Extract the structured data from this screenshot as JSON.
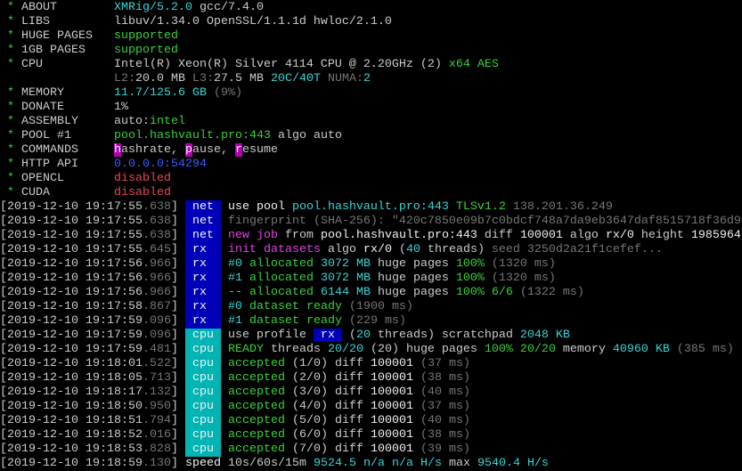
{
  "colors": {
    "white": "#cccccc",
    "bright": "#f2f2f2",
    "green": "#3ad13a",
    "cyan": "#3ad5d5",
    "grey": "#767676",
    "magenta": "#e040e0",
    "blue": "#3b5bff",
    "red": "#e74856",
    "tag_blue_bg": "#0000b8",
    "tag_cyan_bg": "#00b4b4"
  },
  "header": [
    {
      "label": "ABOUT",
      "segments": [
        [
          "XMRig/5.2.0",
          "cyan"
        ],
        [
          " gcc/7.4.0",
          "white"
        ]
      ]
    },
    {
      "label": "LIBS",
      "segments": [
        [
          "libuv/1.34.0 OpenSSL/1.1.1d hwloc/2.1.0",
          "white"
        ]
      ]
    },
    {
      "label": "HUGE PAGES",
      "segments": [
        [
          "supported",
          "green"
        ]
      ]
    },
    {
      "label": "1GB PAGES",
      "segments": [
        [
          "supported",
          "green"
        ]
      ]
    },
    {
      "label": "CPU",
      "segments": [
        [
          "Intel(R) Xeon(R) Silver 4114 CPU @ 2.20GHz (2)",
          "white"
        ],
        [
          " x64 AES",
          "green"
        ]
      ]
    },
    {
      "label": "",
      "segments": [
        [
          "L2:",
          "grey"
        ],
        [
          "20.0 MB ",
          "white"
        ],
        [
          "L3:",
          "grey"
        ],
        [
          "27.5 MB ",
          "white"
        ],
        [
          "20C/40T",
          "cyan"
        ],
        [
          " NUMA:",
          "grey"
        ],
        [
          "2",
          "cyan"
        ]
      ]
    },
    {
      "label": "MEMORY",
      "segments": [
        [
          "11.7/125.6 GB",
          "cyan"
        ],
        [
          " (9%)",
          "grey"
        ]
      ]
    },
    {
      "label": "DONATE",
      "segments": [
        [
          "1%",
          "white"
        ]
      ]
    },
    {
      "label": "ASSEMBLY",
      "segments": [
        [
          "auto:",
          "white"
        ],
        [
          "intel",
          "green"
        ]
      ]
    },
    {
      "label": "POOL #1",
      "segments": [
        [
          "pool.hashvault.pro:443",
          "green"
        ],
        [
          " algo auto",
          "white"
        ]
      ]
    },
    {
      "label": "COMMANDS",
      "segments": [
        [
          "h",
          "bg-magenta"
        ],
        [
          "ashrate, ",
          "white"
        ],
        [
          "p",
          "bg-magenta"
        ],
        [
          "ause, ",
          "white"
        ],
        [
          "r",
          "bg-magenta"
        ],
        [
          "esume",
          "white"
        ]
      ]
    },
    {
      "label": "HTTP API",
      "segments": [
        [
          "0.0.0.0:54294",
          "blue"
        ]
      ]
    },
    {
      "label": "OPENCL",
      "segments": [
        [
          "disabled",
          "red"
        ]
      ]
    },
    {
      "label": "CUDA",
      "segments": [
        [
          "disabled",
          "red"
        ]
      ]
    }
  ],
  "log": [
    {
      "ts": "2019-12-10 19:17:55",
      "ms": ".638",
      "tag": "net",
      "segments": [
        [
          "use pool ",
          "bright"
        ],
        [
          "pool.hashvault.pro:443",
          "cyan"
        ],
        [
          " TLSv1.2",
          "green"
        ],
        [
          " 138.201.36.249",
          "grey"
        ]
      ]
    },
    {
      "ts": "2019-12-10 19:17:55",
      "ms": ".638",
      "tag": "net",
      "segments": [
        [
          "fingerprint (SHA-256): \"420c7850e09b7c0bdcf748a7da9eb3647daf8515718f36d9d",
          "grey"
        ]
      ]
    },
    {
      "ts": "2019-12-10 19:17:55",
      "ms": ".638",
      "tag": "net",
      "segments": [
        [
          "new job",
          "magenta"
        ],
        [
          " from ",
          "white"
        ],
        [
          "pool.hashvault.pro:443",
          "bright"
        ],
        [
          " diff ",
          "white"
        ],
        [
          "100001",
          "bright"
        ],
        [
          " algo ",
          "white"
        ],
        [
          "rx/0",
          "bright"
        ],
        [
          " height ",
          "white"
        ],
        [
          "1985964",
          "bright"
        ]
      ]
    },
    {
      "ts": "2019-12-10 19:17:55",
      "ms": ".645",
      "tag": "rx",
      "segments": [
        [
          "init datasets",
          "magenta"
        ],
        [
          " algo ",
          "white"
        ],
        [
          "rx/0",
          "bright"
        ],
        [
          " (",
          "white"
        ],
        [
          "40",
          "cyan"
        ],
        [
          " threads)",
          "white"
        ],
        [
          " seed 3250d2a21f1cefef...",
          "grey"
        ]
      ]
    },
    {
      "ts": "2019-12-10 19:17:56",
      "ms": ".966",
      "tag": "rx",
      "segments": [
        [
          "#0",
          "cyan"
        ],
        [
          " allocated",
          "green"
        ],
        [
          " 3072 MB",
          "cyan"
        ],
        [
          " huge pages ",
          "white"
        ],
        [
          "100%",
          "green"
        ],
        [
          " (1320 ms)",
          "grey"
        ]
      ]
    },
    {
      "ts": "2019-12-10 19:17:56",
      "ms": ".966",
      "tag": "rx",
      "segments": [
        [
          "#1",
          "cyan"
        ],
        [
          " allocated",
          "green"
        ],
        [
          " 3072 MB",
          "cyan"
        ],
        [
          " huge pages ",
          "white"
        ],
        [
          "100%",
          "green"
        ],
        [
          " (1320 ms)",
          "grey"
        ]
      ]
    },
    {
      "ts": "2019-12-10 19:17:56",
      "ms": ".966",
      "tag": "rx",
      "segments": [
        [
          "--",
          "cyan"
        ],
        [
          " allocated",
          "green"
        ],
        [
          " 6144 MB",
          "cyan"
        ],
        [
          " huge pages ",
          "white"
        ],
        [
          "100% 6/6",
          "green"
        ],
        [
          " (1322 ms)",
          "grey"
        ]
      ]
    },
    {
      "ts": "2019-12-10 19:17:58",
      "ms": ".867",
      "tag": "rx",
      "segments": [
        [
          "#0",
          "cyan"
        ],
        [
          " dataset ready",
          "green"
        ],
        [
          " (1900 ms)",
          "grey"
        ]
      ]
    },
    {
      "ts": "2019-12-10 19:17:59",
      "ms": ".096",
      "tag": "rx",
      "segments": [
        [
          "#1",
          "cyan"
        ],
        [
          " dataset ready",
          "green"
        ],
        [
          " (229 ms)",
          "grey"
        ]
      ]
    },
    {
      "ts": "2019-12-10 19:17:59",
      "ms": ".096",
      "tag": "cpu",
      "segments": [
        [
          "use profile ",
          "white"
        ],
        [
          " rx ",
          "bg-blue"
        ],
        [
          " (",
          "white"
        ],
        [
          "20",
          "cyan"
        ],
        [
          " threads) scratchpad ",
          "white"
        ],
        [
          "2048 KB",
          "cyan"
        ]
      ]
    },
    {
      "ts": "2019-12-10 19:17:59",
      "ms": ".481",
      "tag": "cpu",
      "segments": [
        [
          "READY",
          "green"
        ],
        [
          " threads ",
          "white"
        ],
        [
          "20/20",
          "cyan"
        ],
        [
          " (20) huge pages ",
          "white"
        ],
        [
          "100% 20/20",
          "green"
        ],
        [
          " memory ",
          "white"
        ],
        [
          "40960 KB",
          "cyan"
        ],
        [
          " (385 ms)",
          "grey"
        ]
      ]
    },
    {
      "ts": "2019-12-10 19:18:01",
      "ms": ".522",
      "tag": "cpu",
      "segments": [
        [
          "accepted",
          "green"
        ],
        [
          " (1/0) diff ",
          "white"
        ],
        [
          "100001",
          "bright"
        ],
        [
          " (37 ms)",
          "grey"
        ]
      ]
    },
    {
      "ts": "2019-12-10 19:18:05",
      "ms": ".713",
      "tag": "cpu",
      "segments": [
        [
          "accepted",
          "green"
        ],
        [
          " (2/0) diff ",
          "white"
        ],
        [
          "100001",
          "bright"
        ],
        [
          " (38 ms)",
          "grey"
        ]
      ]
    },
    {
      "ts": "2019-12-10 19:18:17",
      "ms": ".132",
      "tag": "cpu",
      "segments": [
        [
          "accepted",
          "green"
        ],
        [
          " (3/0) diff ",
          "white"
        ],
        [
          "100001",
          "bright"
        ],
        [
          " (40 ms)",
          "grey"
        ]
      ]
    },
    {
      "ts": "2019-12-10 19:18:50",
      "ms": ".950",
      "tag": "cpu",
      "segments": [
        [
          "accepted",
          "green"
        ],
        [
          " (4/0) diff ",
          "white"
        ],
        [
          "100001",
          "bright"
        ],
        [
          " (37 ms)",
          "grey"
        ]
      ]
    },
    {
      "ts": "2019-12-10 19:18:51",
      "ms": ".794",
      "tag": "cpu",
      "segments": [
        [
          "accepted",
          "green"
        ],
        [
          " (5/0) diff ",
          "white"
        ],
        [
          "100001",
          "bright"
        ],
        [
          " (40 ms)",
          "grey"
        ]
      ]
    },
    {
      "ts": "2019-12-10 19:18:52",
      "ms": ".016",
      "tag": "cpu",
      "segments": [
        [
          "accepted",
          "green"
        ],
        [
          " (6/0) diff ",
          "white"
        ],
        [
          "100001",
          "bright"
        ],
        [
          " (38 ms)",
          "grey"
        ]
      ]
    },
    {
      "ts": "2019-12-10 19:18:53",
      "ms": ".828",
      "tag": "cpu",
      "segments": [
        [
          "accepted",
          "green"
        ],
        [
          " (7/0) diff ",
          "white"
        ],
        [
          "100001",
          "bright"
        ],
        [
          " (39 ms)",
          "grey"
        ]
      ]
    },
    {
      "ts": "2019-12-10 19:18:59",
      "ms": ".130",
      "tag": "speed",
      "segments": [
        [
          "10s/60s/15m ",
          "white"
        ],
        [
          "9524.5",
          "cyan"
        ],
        [
          " n/a n/a",
          "cyan"
        ],
        [
          " H/s",
          "cyan"
        ],
        [
          " max ",
          "white"
        ],
        [
          "9540.4 H/s",
          "cyan"
        ]
      ]
    }
  ]
}
